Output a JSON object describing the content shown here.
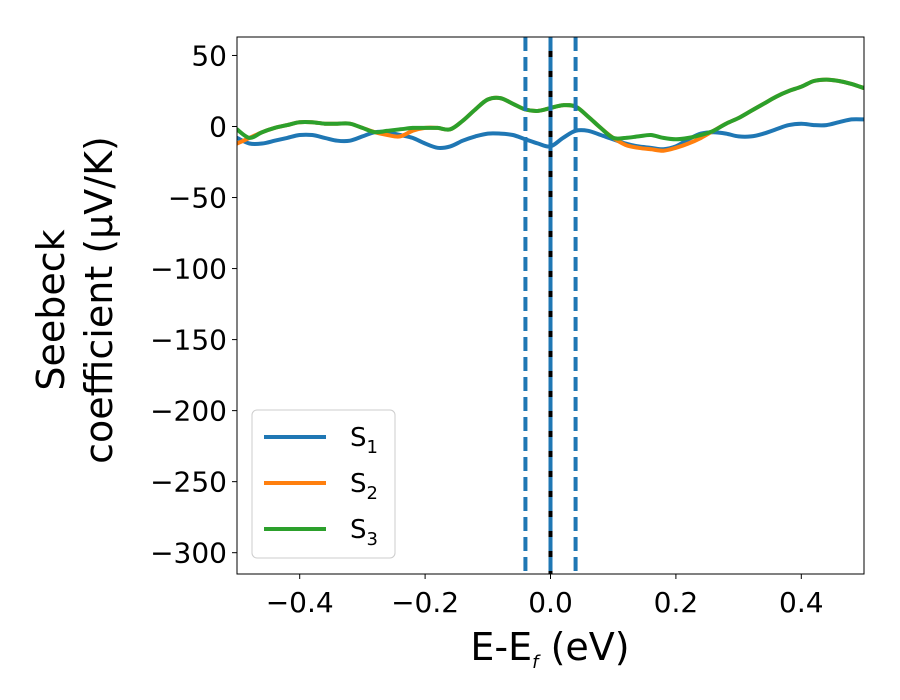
{
  "chart_data": {
    "type": "line",
    "title": "",
    "xlabel": {
      "main": "E-E",
      "sub": "f",
      "unit": " (eV)"
    },
    "ylabel": {
      "line1": "Seebeck",
      "line2": "coefficient  (μV/K)"
    },
    "xlim": [
      -0.5,
      0.5
    ],
    "ylim": [
      -315,
      63
    ],
    "xticks": [
      -0.4,
      -0.2,
      0.0,
      0.2,
      0.4
    ],
    "xtick_labels": [
      "−0.4",
      "−0.2",
      "0.0",
      "0.2",
      "0.4"
    ],
    "yticks": [
      50,
      0,
      -50,
      -100,
      -150,
      -200,
      -250,
      -300
    ],
    "ytick_labels": [
      "50",
      "0",
      "−50",
      "−100",
      "−150",
      "−200",
      "−250",
      "−300"
    ],
    "grid": false,
    "legend_position": "lower-left",
    "series": [
      {
        "name": "S",
        "sub": "1",
        "color": "#1f77b4",
        "x": [
          -0.5,
          -0.48,
          -0.46,
          -0.44,
          -0.42,
          -0.4,
          -0.38,
          -0.36,
          -0.34,
          -0.32,
          -0.3,
          -0.28,
          -0.26,
          -0.24,
          -0.22,
          -0.2,
          -0.18,
          -0.16,
          -0.14,
          -0.12,
          -0.1,
          -0.08,
          -0.06,
          -0.04,
          -0.02,
          0.0,
          0.02,
          0.04,
          0.06,
          0.08,
          0.1,
          0.12,
          0.14,
          0.16,
          0.18,
          0.2,
          0.22,
          0.24,
          0.26,
          0.28,
          0.3,
          0.32,
          0.34,
          0.36,
          0.38,
          0.4,
          0.42,
          0.44,
          0.46,
          0.48,
          0.5
        ],
        "y": [
          -8,
          -12,
          -12,
          -10,
          -8,
          -6,
          -6,
          -8,
          -10,
          -10,
          -7,
          -4,
          -4,
          -6,
          -8,
          -12,
          -15,
          -14,
          -10,
          -7,
          -5,
          -5,
          -6,
          -9,
          -12,
          -14,
          -8,
          -3,
          -3,
          -6,
          -9,
          -12,
          -14,
          -15,
          -16,
          -14,
          -9,
          -5,
          -4,
          -5,
          -7,
          -7,
          -5,
          -2,
          1,
          2,
          1,
          1,
          3,
          5,
          5
        ]
      },
      {
        "name": "S",
        "sub": "2",
        "color": "#ff7f0e",
        "x": [
          -0.5,
          -0.48,
          -0.46,
          -0.44,
          -0.42,
          -0.4,
          -0.38,
          -0.36,
          -0.34,
          -0.32,
          -0.3,
          -0.28,
          -0.26,
          -0.24,
          -0.22,
          -0.2,
          -0.18,
          -0.16,
          -0.14,
          -0.12,
          -0.1,
          -0.08,
          -0.06,
          -0.04,
          -0.02,
          0.0,
          0.02,
          0.04,
          0.06,
          0.08,
          0.1,
          0.12,
          0.14,
          0.16,
          0.18,
          0.2,
          0.22,
          0.24,
          0.26,
          0.28,
          0.3,
          0.32,
          0.34,
          0.36,
          0.38,
          0.4,
          0.42,
          0.44,
          0.46,
          0.48,
          0.5
        ],
        "y": [
          -12,
          -8,
          -4,
          -1,
          1,
          3,
          3,
          2,
          2,
          2,
          -1,
          -4,
          -6,
          -7,
          -3,
          -1,
          -1,
          -2,
          4,
          12,
          19,
          20,
          16,
          12,
          11,
          13,
          15,
          14,
          7,
          -1,
          -8,
          -13,
          -15,
          -16,
          -17,
          -15,
          -12,
          -8,
          -3,
          2,
          6,
          11,
          16,
          21,
          25,
          28,
          32,
          33,
          32,
          30,
          27
        ]
      },
      {
        "name": "S",
        "sub": "3",
        "color": "#2ca02c",
        "x": [
          -0.5,
          -0.48,
          -0.46,
          -0.44,
          -0.42,
          -0.4,
          -0.38,
          -0.36,
          -0.34,
          -0.32,
          -0.3,
          -0.28,
          -0.26,
          -0.24,
          -0.22,
          -0.2,
          -0.18,
          -0.16,
          -0.14,
          -0.12,
          -0.1,
          -0.08,
          -0.06,
          -0.04,
          -0.02,
          0.0,
          0.02,
          0.04,
          0.06,
          0.08,
          0.1,
          0.12,
          0.14,
          0.16,
          0.18,
          0.2,
          0.22,
          0.24,
          0.26,
          0.28,
          0.3,
          0.32,
          0.34,
          0.36,
          0.38,
          0.4,
          0.42,
          0.44,
          0.46,
          0.48,
          0.5
        ],
        "y": [
          -2,
          -8,
          -4,
          -1,
          1,
          3,
          3,
          2,
          2,
          2,
          -1,
          -4,
          -3,
          -2,
          -1,
          -1,
          -1,
          -2,
          4,
          12,
          19,
          20,
          16,
          12,
          11,
          13,
          15,
          14,
          7,
          -1,
          -8,
          -8,
          -7,
          -6,
          -8,
          -9,
          -8,
          -6,
          -3,
          2,
          6,
          11,
          16,
          21,
          25,
          28,
          32,
          33,
          32,
          30,
          27
        ]
      }
    ],
    "vlines": [
      {
        "x": -0.04,
        "style": "dashed",
        "color": "#1f77b4"
      },
      {
        "x": 0.0,
        "style": "solid",
        "color": "#000000"
      },
      {
        "x": 0.0,
        "style": "dashed",
        "color": "#1f77b4"
      },
      {
        "x": 0.04,
        "style": "dashed",
        "color": "#1f77b4"
      }
    ]
  }
}
